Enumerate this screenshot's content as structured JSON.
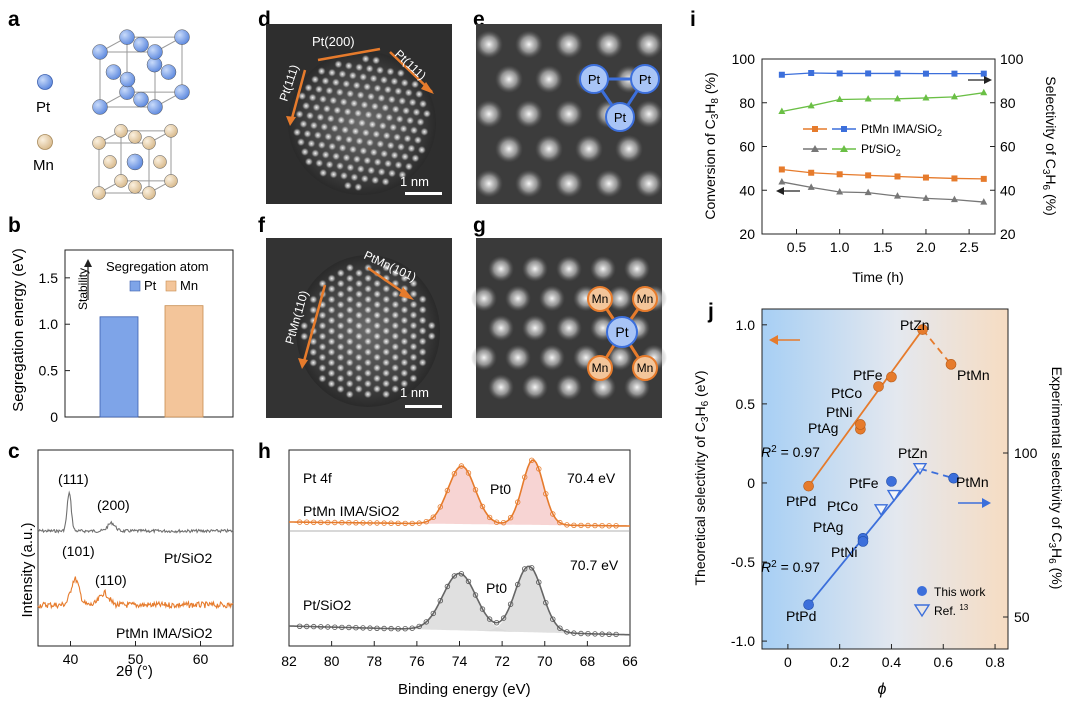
{
  "panel_letters": [
    "a",
    "b",
    "c",
    "d",
    "e",
    "f",
    "g",
    "h",
    "i",
    "j"
  ],
  "colors": {
    "pt": "#7ea4e8",
    "mn": "#ead2ad",
    "orange": "#e67b2c",
    "blue": "#3c6fdb",
    "gray": "#777777",
    "green": "#6abf45",
    "stem_bg": "#333333"
  },
  "panel_a": {
    "legend": [
      "Pt",
      "Mn"
    ]
  },
  "panel_b": {
    "ylabel": "Segregation energy (eV)",
    "stability_label": "Stability",
    "legend_title": "Segregation atom",
    "legend": [
      "Pt",
      "Mn"
    ],
    "yticks": [
      "0",
      "0.5",
      "1.0",
      "1.5"
    ]
  },
  "panel_c": {
    "ylabel": "Intensity (a.u.)",
    "xlabel": "2θ (°)",
    "xticks": [
      "40",
      "50",
      "60"
    ],
    "peaks_pt": [
      "(111)",
      "(200)"
    ],
    "peaks_ptmn": [
      "(101)",
      "(110)"
    ],
    "label_pt": "Pt/SiO2",
    "label_ptmn": "PtMn IMA/SiO2"
  },
  "panel_d": {
    "labels": [
      "Pt(200)",
      "Pt(111)",
      "Pt(111)"
    ],
    "scale": "1 nm"
  },
  "panel_e": {
    "atoms": [
      "Pt",
      "Pt",
      "Pt"
    ]
  },
  "panel_f": {
    "labels": [
      "PtMn(101)",
      "PtMn(110)"
    ],
    "scale": "1 nm"
  },
  "panel_g": {
    "center": "Pt",
    "corners": [
      "Mn",
      "Mn",
      "Mn",
      "Mn"
    ]
  },
  "panel_h": {
    "title": "Pt 4f",
    "xlabel": "Binding energy (eV)",
    "xticks": [
      "82",
      "80",
      "78",
      "76",
      "74",
      "72",
      "70",
      "68",
      "66"
    ],
    "top": {
      "label": "PtMn IMA/SiO2",
      "peak": "70.4 eV",
      "pt0": "Pt0"
    },
    "bottom": {
      "label": "Pt/SiO2",
      "peak": "70.7 eV",
      "pt0": "Pt0"
    }
  },
  "chart_data": [
    {
      "type": "bar",
      "panel": "b",
      "categories": [
        "Pt",
        "Mn"
      ],
      "values": [
        1.08,
        1.2
      ],
      "xlabel": "",
      "ylabel": "Segregation energy (eV)",
      "ylim": [
        0,
        1.8
      ],
      "legend_title": "Segregation atom"
    },
    {
      "type": "line",
      "panel": "c",
      "xlabel": "2θ (°)",
      "ylabel": "Intensity (a.u.)",
      "xlim": [
        35,
        65
      ],
      "series": [
        {
          "name": "Pt/SiO2",
          "peaks_x": [
            39.8,
            46.3
          ]
        },
        {
          "name": "PtMn IMA/SiO2",
          "peaks_x": [
            40.7,
            45.2
          ]
        }
      ]
    },
    {
      "type": "line",
      "panel": "h",
      "xlabel": "Binding energy (eV)",
      "xlim": [
        82,
        66
      ],
      "series": [
        {
          "name": "PtMn IMA/SiO2",
          "peaks_x": [
            73.8,
            70.4
          ]
        },
        {
          "name": "Pt/SiO2",
          "peaks_x": [
            74.0,
            70.7
          ]
        }
      ]
    },
    {
      "type": "line",
      "panel": "i",
      "xlabel": "Time (h)",
      "ylabel_left": "Conversion of C3H8 (%)",
      "ylabel_right": "Selectivity of C3H6 (%)",
      "xlim": [
        0.1,
        2.8
      ],
      "ylim_left": [
        20,
        100
      ],
      "ylim_right": [
        20,
        100
      ],
      "xticks": [
        0.5,
        1.0,
        1.5,
        2.0,
        2.5
      ],
      "yticks": [
        20,
        40,
        60,
        80,
        100
      ],
      "x": [
        0.33,
        0.67,
        1.0,
        1.33,
        1.67,
        2.0,
        2.33,
        2.67
      ],
      "series": [
        {
          "name": "PtMn IMA/SiO2",
          "metric": "conversion",
          "color": "#e67b2c",
          "marker": "square",
          "values": [
            49.5,
            48.0,
            47.3,
            46.8,
            46.3,
            45.8,
            45.4,
            45.2
          ]
        },
        {
          "name": "PtMn IMA/SiO2",
          "metric": "selectivity",
          "color": "#3c6fdb",
          "marker": "square",
          "values": [
            92.8,
            93.6,
            93.4,
            93.4,
            93.4,
            93.3,
            93.3,
            93.3
          ]
        },
        {
          "name": "Pt/SiO2",
          "metric": "conversion",
          "color": "#777777",
          "marker": "triangle",
          "values": [
            43.8,
            41.3,
            39.2,
            38.9,
            37.3,
            36.3,
            35.7,
            34.6
          ]
        },
        {
          "name": "Pt/SiO2",
          "metric": "selectivity",
          "color": "#6abf45",
          "marker": "triangle",
          "values": [
            76.0,
            78.6,
            81.5,
            81.7,
            81.8,
            82.2,
            82.7,
            84.6
          ]
        }
      ]
    },
    {
      "type": "scatter",
      "panel": "j",
      "xlabel": "ϕ",
      "ylabel_left": "Theoretical selectivity of C3H6 (eV)",
      "ylabel_right": "Experimental selectivity of C3H6 (%)",
      "xlim": [
        -0.1,
        0.85
      ],
      "ylim_left": [
        -1.05,
        1.1
      ],
      "xticks": [
        0,
        0.2,
        0.4,
        0.6,
        0.8
      ],
      "yticks_left": [
        -1.0,
        -0.5,
        0,
        0.5,
        1.0
      ],
      "yticks_right": [
        50,
        100
      ],
      "r2": [
        "R2 = 0.97",
        "R2 = 0.97"
      ],
      "legend": [
        "This work",
        "Ref. 13"
      ],
      "series": [
        {
          "name": "Theoretical",
          "color": "#e67b2c",
          "points": [
            {
              "label": "PtPd",
              "x": 0.08,
              "y": -0.02
            },
            {
              "label": "PtAg",
              "x": 0.28,
              "y": 0.34
            },
            {
              "label": "PtNi",
              "x": 0.28,
              "y": 0.37
            },
            {
              "label": "PtCo",
              "x": 0.35,
              "y": 0.61
            },
            {
              "label": "PtFe",
              "x": 0.4,
              "y": 0.67
            },
            {
              "label": "PtZn",
              "x": 0.52,
              "y": 0.97
            },
            {
              "label": "PtMn",
              "x": 0.63,
              "y": 0.75
            }
          ]
        },
        {
          "name": "Experimental",
          "color": "#3c6fdb",
          "points": [
            {
              "label": "PtPd",
              "x": 0.08,
              "y": -0.77,
              "source": "This work"
            },
            {
              "label": "PtAg",
              "x": 0.29,
              "y": -0.35,
              "source": "This work"
            },
            {
              "label": "PtNi",
              "x": 0.29,
              "y": -0.37,
              "source": "This work"
            },
            {
              "label": "PtCo",
              "x": 0.36,
              "y": -0.17,
              "source": "Ref. 13"
            },
            {
              "label": "PtFe",
              "x": 0.4,
              "y": 0.01,
              "source": "This work"
            },
            {
              "label": "PtFe",
              "x": 0.41,
              "y": -0.08,
              "source": "Ref. 13"
            },
            {
              "label": "PtZn",
              "x": 0.51,
              "y": 0.09,
              "source": "Ref. 13"
            },
            {
              "label": "PtMn",
              "x": 0.64,
              "y": 0.03,
              "source": "This work"
            }
          ]
        }
      ]
    }
  ]
}
